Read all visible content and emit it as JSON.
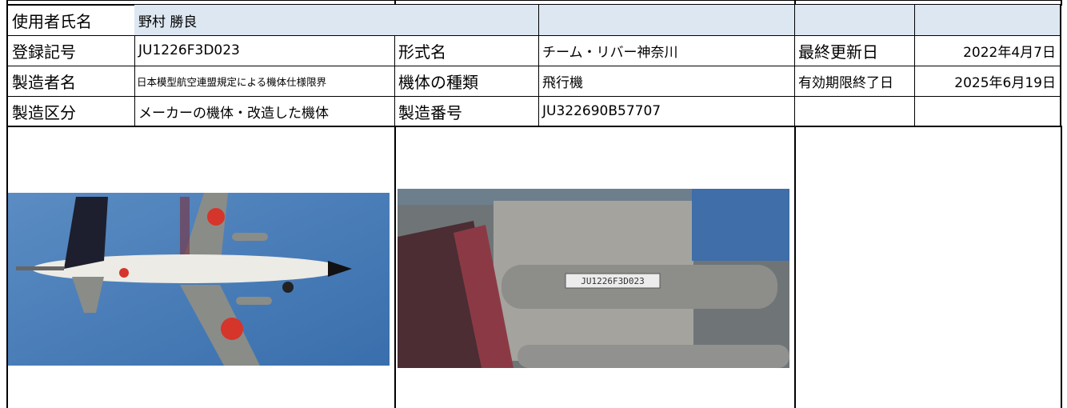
{
  "table": {
    "rows": [
      [
        "使用者氏名",
        "野村 勝良"
      ],
      [
        "登録記号",
        "JU1226F3D023",
        "形式名",
        "チーム・リバー神奈川",
        "最終更新日",
        "2022年4月7日"
      ],
      [
        "製造者名",
        "日本模型航空連盟規定による機体仕様限界",
        "機体の種類",
        "飛行機",
        "有効期限終了日",
        "2025年6月19日"
      ],
      [
        "製造区分",
        "メーカーの機体・改造した機体",
        "製造番号",
        "JU322690B57707"
      ]
    ]
  },
  "photos": {
    "detail_tag": "JU1226F3D023"
  }
}
